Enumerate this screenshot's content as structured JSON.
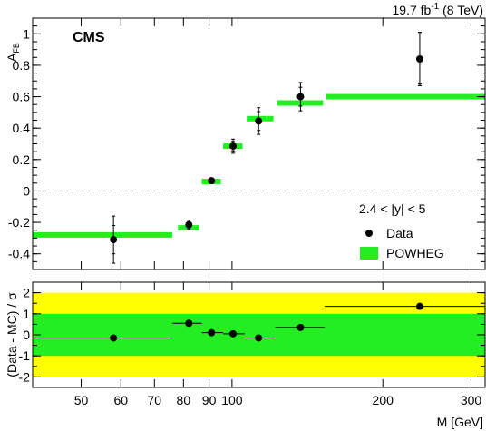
{
  "chart_data": [
    {
      "type": "scatter",
      "title": "",
      "luminosity": "19.7 fb",
      "luminosity_exp": "-1",
      "energy": "(8 TeV)",
      "experiment": "CMS",
      "ylabel": "A",
      "ylabel_sub": "FB",
      "xscale": "log",
      "xlim": [
        40,
        320
      ],
      "ylim": [
        -0.5,
        1.1
      ],
      "yticks": [
        -0.4,
        -0.2,
        0,
        0.2,
        0.4,
        0.6,
        0.8,
        1
      ],
      "ytick_labels": [
        "-0.4",
        "-0.2",
        "0",
        "0.2",
        "0.4",
        "0.6",
        "0.8",
        "1"
      ],
      "region_label": "2.4 < |y| < 5",
      "legend": [
        {
          "name": "Data",
          "marker": "dot",
          "color": "#000000"
        },
        {
          "name": "POWHEG",
          "marker": "box",
          "color": "#22ee22"
        }
      ],
      "data": {
        "name": "Data",
        "points": [
          {
            "x": 58,
            "y": -0.31,
            "err": 0.15,
            "stat": 0.09
          },
          {
            "x": 82,
            "y": -0.215,
            "err": 0.03,
            "stat": 0.02
          },
          {
            "x": 91,
            "y": 0.065,
            "err": 0.0,
            "stat": 0.0
          },
          {
            "x": 100.5,
            "y": 0.285,
            "err": 0.045,
            "stat": 0.03
          },
          {
            "x": 113,
            "y": 0.445,
            "err": 0.085,
            "stat": 0.06
          },
          {
            "x": 137,
            "y": 0.6,
            "err": 0.09,
            "stat": 0.06
          },
          {
            "x": 237,
            "y": 0.84,
            "err": 0.17,
            "stat": 0.16
          }
        ]
      },
      "powheg": {
        "name": "POWHEG",
        "bins": [
          {
            "xlo": 40,
            "xhi": 76,
            "y": -0.28
          },
          {
            "xlo": 78,
            "xhi": 86,
            "y": -0.235
          },
          {
            "xlo": 87,
            "xhi": 95,
            "y": 0.06
          },
          {
            "xlo": 96,
            "xhi": 105,
            "y": 0.285
          },
          {
            "xlo": 107,
            "xhi": 121,
            "y": 0.46
          },
          {
            "xlo": 123,
            "xhi": 152,
            "y": 0.56
          },
          {
            "xlo": 154,
            "xhi": 320,
            "y": 0.6
          }
        ]
      }
    },
    {
      "type": "scatter",
      "title": "",
      "ylabel": "(Data - MC) / σ",
      "xlabel": "M [GeV]",
      "xscale": "log",
      "xlim": [
        40,
        320
      ],
      "ylim": [
        -2.5,
        2.5
      ],
      "yticks": [
        -2,
        -1,
        0,
        1,
        2
      ],
      "ytick_labels": [
        "-2",
        "-1",
        "0",
        "1",
        "2"
      ],
      "xtick_values": [
        50,
        60,
        70,
        80,
        90,
        100,
        200,
        300
      ],
      "xtick_labels": [
        "50",
        "60",
        "70",
        "80",
        "90",
        "100",
        "200",
        "300"
      ],
      "bands": [
        {
          "lo": -2,
          "hi": 2,
          "color": "#ffff00"
        },
        {
          "lo": -1,
          "hi": 1,
          "color": "#22ee22"
        }
      ],
      "points": [
        {
          "x": 58,
          "y": -0.15,
          "xlo": 40,
          "xhi": 76
        },
        {
          "x": 82,
          "y": 0.55,
          "xlo": 76,
          "xhi": 87
        },
        {
          "x": 91,
          "y": 0.1,
          "xlo": 87,
          "xhi": 96
        },
        {
          "x": 100.5,
          "y": 0.05,
          "xlo": 96,
          "xhi": 106
        },
        {
          "x": 113,
          "y": -0.15,
          "xlo": 106,
          "xhi": 122
        },
        {
          "x": 137,
          "y": 0.35,
          "xlo": 122,
          "xhi": 153
        },
        {
          "x": 237,
          "y": 1.35,
          "xlo": 153,
          "xhi": 320
        }
      ]
    }
  ]
}
